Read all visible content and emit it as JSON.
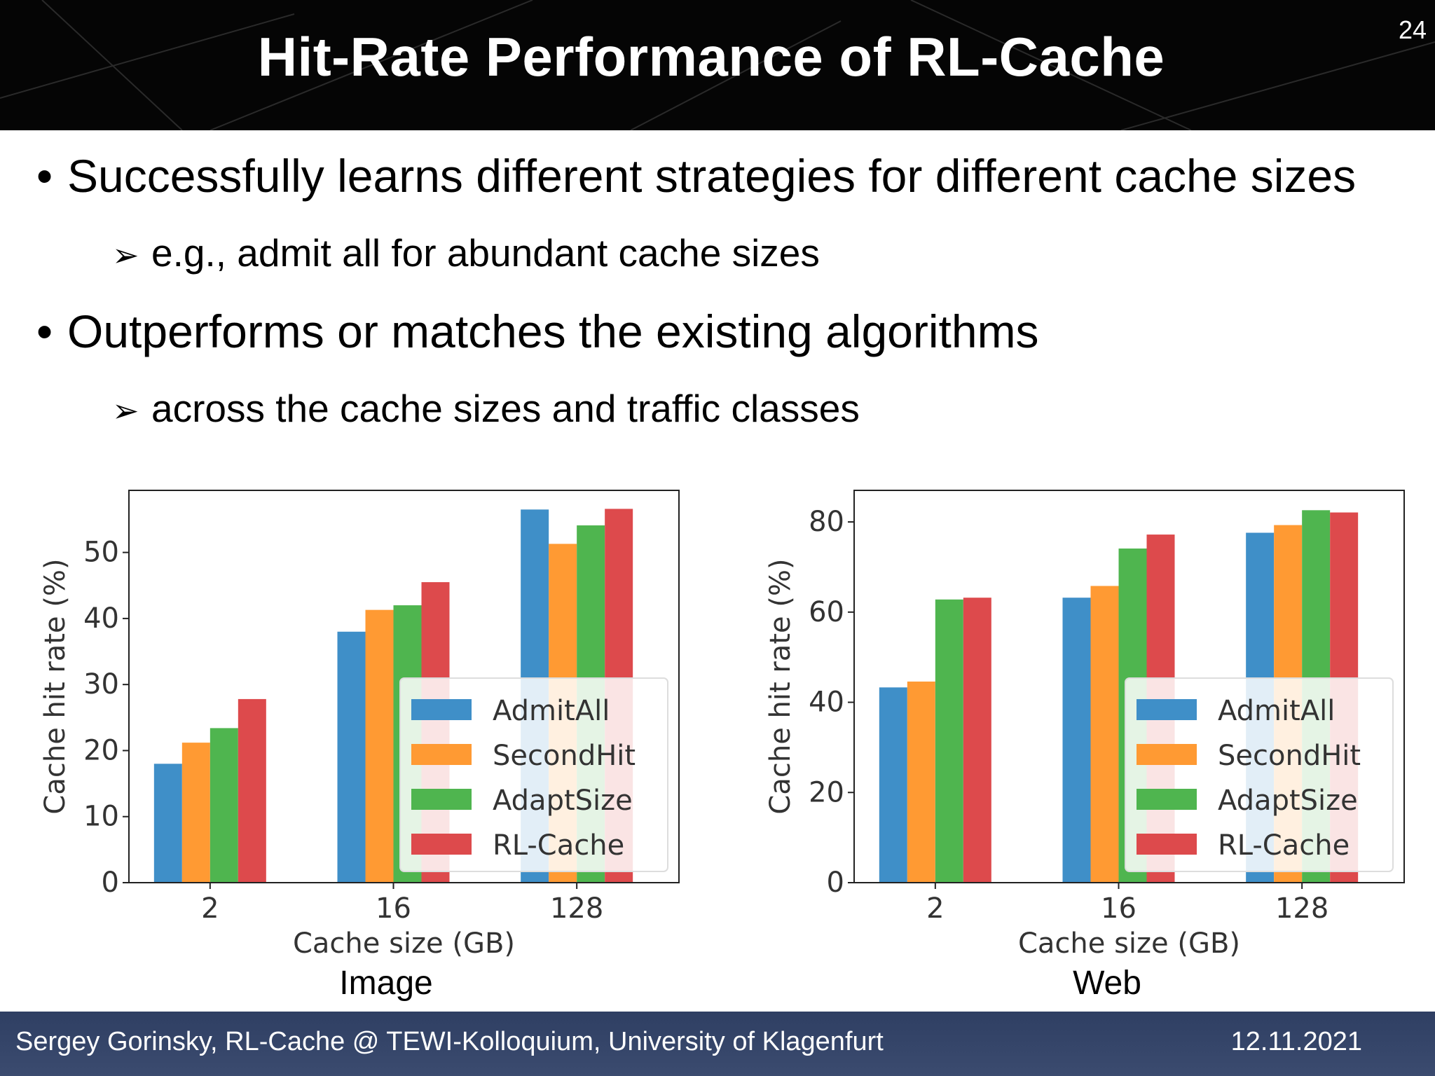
{
  "slide": {
    "title": "Hit-Rate Performance of RL-Cache",
    "number": "24",
    "bullets": [
      {
        "text": "Successfully learns different strategies for different cache sizes",
        "sub": "e.g., admit all for abundant cache sizes"
      },
      {
        "text": "Outperforms or matches the existing algorithms",
        "sub": "across the cache sizes and traffic classes"
      }
    ],
    "bullet_glyph": "•",
    "sub_glyph": "➢",
    "footer": {
      "left": "Sergey Gorinsky, RL-Cache @ TEWI-Kolloquium, University of Klagenfurt",
      "date": "12.11.2021"
    }
  },
  "colors": {
    "AdmitAll": "#3f8fc8",
    "SecondHit": "#ff9a33",
    "AdaptSize": "#4fb54f",
    "RL-Cache": "#dd4a4c"
  },
  "chart_data": [
    {
      "type": "bar",
      "caption": "Image",
      "categories": [
        "2",
        "16",
        "128"
      ],
      "series": [
        {
          "name": "AdmitAll",
          "values": [
            18,
            38,
            56.5
          ]
        },
        {
          "name": "SecondHit",
          "values": [
            21.2,
            41.3,
            51.3
          ]
        },
        {
          "name": "AdaptSize",
          "values": [
            23.4,
            42,
            54.1
          ]
        },
        {
          "name": "RL-Cache",
          "values": [
            27.8,
            45.5,
            56.6
          ]
        }
      ],
      "xlabel": "Cache size (GB)",
      "ylabel": "Cache hit rate (%)",
      "yticks": [
        0,
        10,
        20,
        30,
        40,
        50
      ],
      "ylim": [
        0,
        59.4
      ],
      "legend": "lower-right",
      "grid": false
    },
    {
      "type": "bar",
      "caption": "Web",
      "categories": [
        "2",
        "16",
        "128"
      ],
      "series": [
        {
          "name": "AdmitAll",
          "values": [
            43.3,
            63.2,
            77.6
          ]
        },
        {
          "name": "SecondHit",
          "values": [
            44.6,
            65.8,
            79.3
          ]
        },
        {
          "name": "AdaptSize",
          "values": [
            62.8,
            74.1,
            82.6
          ]
        },
        {
          "name": "RL-Cache",
          "values": [
            63.2,
            77.2,
            82.1
          ]
        }
      ],
      "xlabel": "Cache size (GB)",
      "ylabel": "Cache hit rate (%)",
      "yticks": [
        0,
        20,
        40,
        60,
        80
      ],
      "ylim": [
        0,
        87
      ],
      "legend": "lower-right",
      "grid": false
    }
  ]
}
